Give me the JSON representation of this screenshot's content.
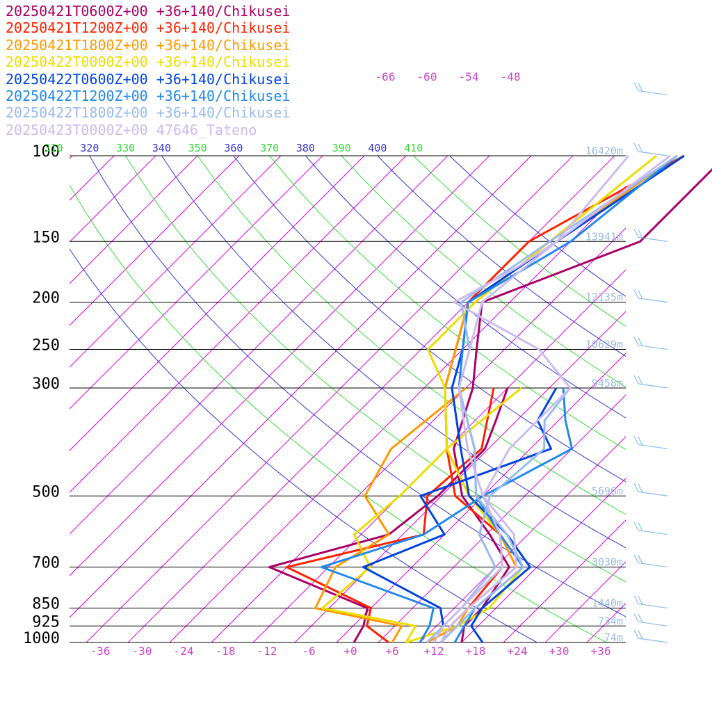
{
  "chart_data": {
    "type": "line",
    "subtype": "skew-T log-P sounding",
    "title": "",
    "xlabel": "",
    "ylabel": "",
    "xunit": "°C",
    "yunit": "hPa",
    "xlim": [
      -38,
      40
    ],
    "ylim": [
      1000,
      100
    ],
    "grid": true,
    "legend_position": "top-left",
    "pressure_ticks": [
      100,
      150,
      200,
      250,
      300,
      500,
      700,
      850,
      925,
      1000
    ],
    "pressure_tick_labels": [
      "100",
      "150",
      "200",
      "250",
      "300",
      "500",
      "700",
      "850",
      "925",
      "1000"
    ],
    "temperature_ticks": [
      -36,
      -30,
      -24,
      -18,
      -12,
      -6,
      0,
      6,
      12,
      18,
      24,
      30,
      36
    ],
    "temperature_tick_labels": [
      "-36",
      "-30",
      "-24",
      "-18",
      "-12",
      "-6",
      "+0",
      "+6",
      "+12",
      "+18",
      "+24",
      "+30",
      "+36"
    ],
    "upper_temperature_labels": [
      {
        "t": -66,
        "text": "-66"
      },
      {
        "t": -60,
        "text": "-60"
      },
      {
        "t": -54,
        "text": "-54"
      },
      {
        "t": -48,
        "text": "-48"
      }
    ],
    "theta_labels": [
      "310",
      "320",
      "330",
      "340",
      "350",
      "360",
      "370",
      "380",
      "390",
      "400",
      "410"
    ],
    "height_labels": [
      {
        "p": 100,
        "text": "16420m"
      },
      {
        "p": 150,
        "text": "13941m"
      },
      {
        "p": 200,
        "text": "12135m"
      },
      {
        "p": 250,
        "text": "10629m"
      },
      {
        "p": 300,
        "text": "9458m"
      },
      {
        "p": 500,
        "text": "5696m"
      },
      {
        "p": 700,
        "text": "3030m"
      },
      {
        "p": 850,
        "text": "1440m"
      },
      {
        "p": 925,
        "text": "734m"
      },
      {
        "p": 1000,
        "text": "74m"
      }
    ],
    "colors": {
      "isotherm": "#dd00dd",
      "dry_adiabat_blue": "#3333cc",
      "dry_adiabat_green": "#33dd33",
      "isobar": "#000000",
      "tick_label": "#cc44cc",
      "height_label": "#99bbdd",
      "wind_barb": "#88bbee"
    },
    "series": [
      {
        "name": "20250421T0600Z+00 +36+140/Chikusei",
        "color": "#aa0066",
        "temperature": [
          [
            1000,
            16
          ],
          [
            925,
            14
          ],
          [
            850,
            14
          ],
          [
            700,
            12
          ],
          [
            600,
            4.5
          ],
          [
            500,
            -5
          ],
          [
            400,
            -13
          ],
          [
            300,
            -19
          ],
          [
            250,
            -24
          ],
          [
            200,
            -30
          ],
          [
            150,
            -16
          ],
          [
            100,
            -16
          ]
        ],
        "dewpoint": [
          [
            1000,
            0.5
          ],
          [
            925,
            -0.5
          ],
          [
            850,
            -2.5
          ],
          [
            700,
            -22.5
          ],
          [
            600,
            -10
          ],
          [
            500,
            -8.5
          ],
          [
            400,
            -8.5
          ],
          [
            350,
            -11
          ],
          [
            300,
            -14
          ]
        ]
      },
      {
        "name": "20250421T1200Z+00 +36+140/Chikusei",
        "color": "#ff2200",
        "temperature": [
          [
            1000,
            13
          ],
          [
            925,
            12
          ],
          [
            850,
            12
          ],
          [
            700,
            11
          ],
          [
            600,
            6
          ],
          [
            500,
            -6
          ],
          [
            400,
            -14
          ],
          [
            300,
            -23
          ],
          [
            250,
            -27
          ],
          [
            200,
            -32
          ],
          [
            150,
            -32
          ],
          [
            100,
            -22
          ]
        ],
        "dewpoint": [
          [
            1000,
            5.5
          ],
          [
            925,
            0
          ],
          [
            850,
            -2
          ],
          [
            700,
            -20
          ],
          [
            600,
            -5
          ],
          [
            500,
            -10
          ],
          [
            400,
            -9
          ],
          [
            300,
            -16
          ]
        ]
      },
      {
        "name": "20250421T1800Z+00 +36+140/Chikusei",
        "color": "#ff9900",
        "temperature": [
          [
            1000,
            11
          ],
          [
            925,
            13
          ],
          [
            850,
            12
          ],
          [
            700,
            13
          ],
          [
            600,
            6
          ],
          [
            500,
            -4
          ],
          [
            400,
            -14
          ],
          [
            300,
            -23
          ],
          [
            250,
            -27
          ],
          [
            200,
            -32
          ],
          [
            150,
            -28
          ],
          [
            100,
            -23
          ]
        ],
        "dewpoint": [
          [
            1000,
            6
          ],
          [
            925,
            5
          ],
          [
            850,
            -10
          ],
          [
            700,
            -13
          ],
          [
            600,
            -10
          ],
          [
            500,
            -19
          ],
          [
            400,
            -22
          ],
          [
            300,
            -20
          ]
        ]
      },
      {
        "name": "20250422T0000Z+00 +36+140/Chikusei",
        "color": "#eedd00",
        "temperature": [
          [
            1000,
            8
          ],
          [
            925,
            13
          ],
          [
            850,
            15
          ],
          [
            700,
            14
          ],
          [
            600,
            6
          ],
          [
            500,
            -4
          ],
          [
            400,
            -14
          ],
          [
            300,
            -23
          ],
          [
            250,
            -31
          ],
          [
            200,
            -31
          ],
          [
            150,
            -29
          ],
          [
            100,
            -26
          ]
        ],
        "dewpoint": [
          [
            1000,
            8
          ],
          [
            925,
            7
          ],
          [
            850,
            -9
          ],
          [
            700,
            -8
          ],
          [
            600,
            -15
          ],
          [
            500,
            -14
          ],
          [
            400,
            -14
          ],
          [
            300,
            -12
          ]
        ]
      },
      {
        "name": "20250422T0600Z+00 +36+140/Chikusei",
        "color": "#0044dd",
        "temperature": [
          [
            1000,
            19
          ],
          [
            925,
            15
          ],
          [
            850,
            14
          ],
          [
            700,
            15
          ],
          [
            600,
            7
          ],
          [
            500,
            -4
          ],
          [
            400,
            -12
          ],
          [
            300,
            -22
          ],
          [
            250,
            -26
          ],
          [
            200,
            -32
          ],
          [
            150,
            -28
          ],
          [
            100,
            -22
          ]
        ],
        "dewpoint": [
          [
            1000,
            12
          ],
          [
            925,
            11
          ],
          [
            850,
            8
          ],
          [
            700,
            -9
          ],
          [
            600,
            -2
          ],
          [
            500,
            -11
          ],
          [
            400,
            1
          ],
          [
            350,
            -5
          ],
          [
            300,
            -7
          ]
        ]
      },
      {
        "name": "20250422T1200Z+00 +36+140/Chikusei",
        "color": "#2288ee",
        "temperature": [
          [
            1000,
            15
          ],
          [
            925,
            14
          ],
          [
            850,
            13
          ],
          [
            700,
            14
          ],
          [
            600,
            6
          ],
          [
            500,
            -3
          ],
          [
            400,
            -10
          ],
          [
            300,
            -21
          ],
          [
            250,
            -26
          ],
          [
            200,
            -32
          ],
          [
            150,
            -26
          ],
          [
            100,
            -23
          ]
        ],
        "dewpoint": [
          [
            1000,
            10
          ],
          [
            925,
            9
          ],
          [
            850,
            7
          ],
          [
            700,
            -15
          ],
          [
            600,
            -5
          ],
          [
            500,
            -2
          ],
          [
            400,
            4
          ],
          [
            350,
            -1
          ],
          [
            300,
            -6
          ]
        ]
      },
      {
        "name": "20250422T1800Z+00 +36+140/Chikusei",
        "color": "#99bbee",
        "temperature": [
          [
            1000,
            13
          ],
          [
            925,
            13
          ],
          [
            850,
            13
          ],
          [
            700,
            14
          ],
          [
            600,
            7
          ],
          [
            500,
            -3
          ],
          [
            400,
            -10
          ],
          [
            300,
            -21
          ],
          [
            250,
            -25
          ],
          [
            200,
            -33
          ],
          [
            150,
            -29
          ],
          [
            100,
            -23
          ]
        ],
        "dewpoint": [
          [
            1000,
            11
          ],
          [
            925,
            11
          ],
          [
            850,
            11
          ],
          [
            700,
            10
          ],
          [
            600,
            3
          ],
          [
            500,
            -1
          ],
          [
            400,
            0
          ],
          [
            350,
            -4
          ],
          [
            300,
            -5
          ]
        ]
      },
      {
        "name": "20250423T0000Z+00 47646_Tateno",
        "color": "#ccbbee",
        "temperature": [
          [
            1000,
            13
          ],
          [
            925,
            12
          ],
          [
            850,
            12
          ],
          [
            700,
            13
          ],
          [
            600,
            8
          ],
          [
            500,
            -2
          ],
          [
            400,
            -11
          ],
          [
            300,
            -21
          ],
          [
            250,
            -25
          ],
          [
            200,
            -30
          ],
          [
            150,
            -28
          ],
          [
            100,
            -24
          ]
        ],
        "dewpoint": [
          [
            1000,
            12
          ],
          [
            925,
            11
          ],
          [
            850,
            11
          ],
          [
            700,
            11
          ],
          [
            600,
            6
          ],
          [
            500,
            -2
          ],
          [
            400,
            -5
          ],
          [
            300,
            -5
          ],
          [
            250,
            -15
          ],
          [
            200,
            -34
          ],
          [
            170,
            -30
          ],
          [
            150,
            -28
          ],
          [
            100,
            -30
          ]
        ]
      }
    ]
  }
}
